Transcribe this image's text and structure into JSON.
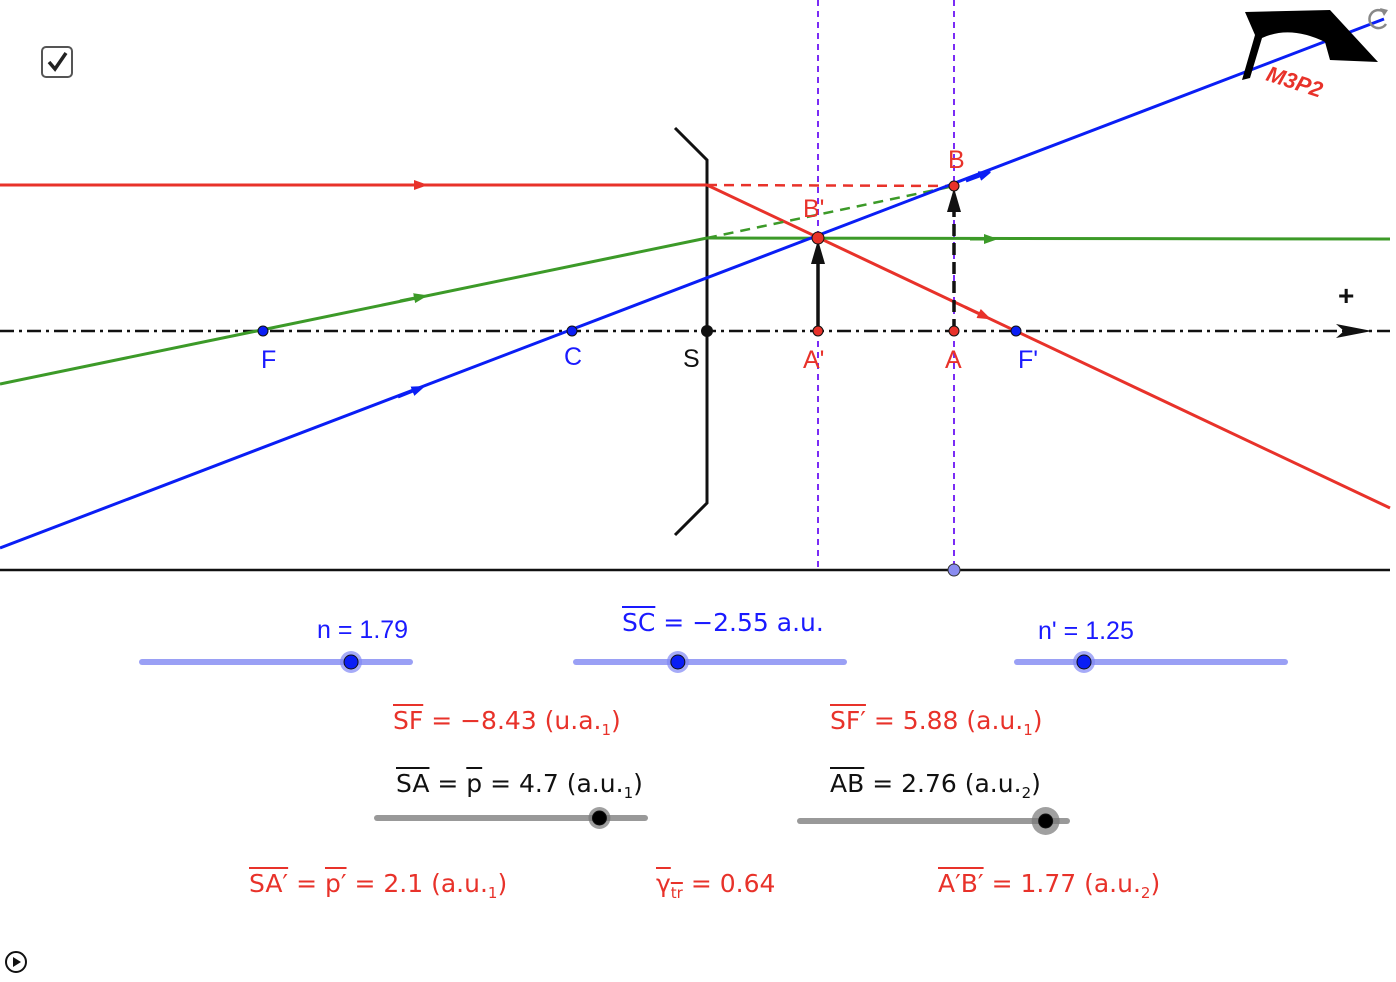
{
  "checkbox": {
    "checked": true,
    "icon": "checkmark-icon"
  },
  "points": {
    "F": "F",
    "C": "C",
    "S": "S",
    "A_prime": "A'",
    "A": "A",
    "F_prime": "F'",
    "B": "B",
    "B_prime": "B'"
  },
  "axis": {
    "positive_sign": "+"
  },
  "logo": {
    "text": "M3P2"
  },
  "colors": {
    "ray_red": "#e8322a",
    "ray_green": "#3c9a28",
    "ray_blue": "#0a1ef5",
    "guide_purple": "#7a2cf5",
    "slider_blue": "#9aa0f5",
    "slider_gray": "#999999"
  },
  "sliders": {
    "n": {
      "name": "n",
      "eq": "=",
      "value": "1.79",
      "fraction": 0.78
    },
    "SC": {
      "name": "SC",
      "eq": "=",
      "value": "−2.55 a.u.",
      "fraction": 0.38
    },
    "n_prime": {
      "name": "n'",
      "eq": "=",
      "value": "1.25",
      "fraction": 0.25
    },
    "SA": {
      "name": "SA",
      "eq1": "=",
      "p": "p",
      "eq2": "=",
      "value": "4.7 (a.u.",
      "sub": "1",
      "close": ")",
      "fraction": 0.83
    },
    "AB": {
      "name": "AB",
      "eq": "=",
      "value": "2.76 (a.u.",
      "sub": "2",
      "close": ")",
      "fraction": 0.92
    }
  },
  "results": {
    "SF": {
      "name": "SF",
      "eq": "=",
      "value": "−8.43 (u.a.",
      "sub": "1",
      "close": ")"
    },
    "SF_prime": {
      "name": "SF′",
      "eq": "=",
      "value": "5.88 (a.u.",
      "sub": "1",
      "close": ")"
    },
    "SA_prime": {
      "name": "SA′",
      "eq1": "=",
      "p": "p′",
      "eq2": "=",
      "value": "2.1 (a.u.",
      "sub": "1",
      "close": ")"
    },
    "gamma": {
      "name": "γ",
      "sub": "tr",
      "eq": "=",
      "value": "0.64"
    },
    "AB_prime": {
      "name": "A′B′",
      "eq": "=",
      "value": "1.77 (a.u.",
      "sub": "2",
      "close": ")"
    }
  },
  "controls": {
    "reset_icon": "reset-icon",
    "play_icon": "play-icon"
  }
}
